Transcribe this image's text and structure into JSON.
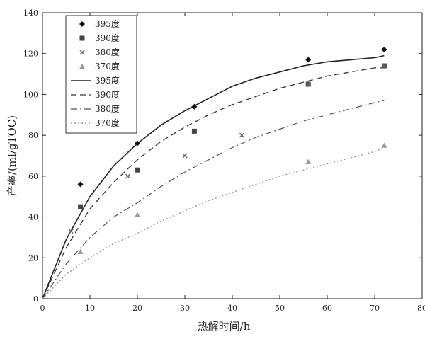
{
  "chart_data": {
    "type": "scatter",
    "title": "",
    "xlabel": "热解时间/h",
    "ylabel": "产率/(ml/gTOC)",
    "xlim": [
      0,
      80
    ],
    "ylim": [
      0,
      140
    ],
    "xticks": [
      0,
      10,
      20,
      30,
      40,
      50,
      60,
      70,
      80
    ],
    "yticks": [
      0,
      20,
      40,
      60,
      80,
      100,
      120,
      140
    ],
    "grid": false,
    "legend_position": "top-left",
    "series": [
      {
        "name": "395度",
        "kind": "points",
        "marker": "diamond",
        "color": "#111111",
        "x": [
          8,
          20,
          32,
          56,
          72
        ],
        "y": [
          56,
          76,
          94,
          117,
          122
        ]
      },
      {
        "name": "390度",
        "kind": "points",
        "marker": "square",
        "color": "#444444",
        "x": [
          8,
          20,
          32,
          56,
          72
        ],
        "y": [
          45,
          63,
          82,
          105,
          114
        ]
      },
      {
        "name": "380度",
        "kind": "points",
        "marker": "cross",
        "color": "#666666",
        "x": [
          6,
          18,
          30,
          42,
          56,
          72
        ],
        "y": [
          33,
          60,
          70,
          80,
          105,
          114
        ]
      },
      {
        "name": "370度",
        "kind": "points",
        "marker": "triangle",
        "color": "#999999",
        "x": [
          8,
          20,
          56,
          72
        ],
        "y": [
          23,
          41,
          67,
          75
        ]
      },
      {
        "name": "395度",
        "kind": "line",
        "dash": "solid",
        "color": "#222222",
        "x": [
          0,
          5,
          10,
          15,
          20,
          25,
          30,
          35,
          40,
          45,
          50,
          55,
          60,
          65,
          70,
          72
        ],
        "y": [
          0,
          29,
          50,
          65,
          76,
          85,
          92,
          98,
          104,
          108,
          111,
          114,
          116,
          117,
          118,
          119
        ]
      },
      {
        "name": "390度",
        "kind": "line",
        "dash": "dashed",
        "color": "#333333",
        "x": [
          0,
          5,
          10,
          15,
          20,
          25,
          30,
          35,
          40,
          45,
          50,
          55,
          60,
          65,
          70,
          72
        ],
        "y": [
          0,
          25,
          44,
          57,
          68,
          77,
          84,
          90,
          95,
          99,
          103,
          106,
          109,
          111,
          113,
          113
        ]
      },
      {
        "name": "380度",
        "kind": "line",
        "dash": "dashdot",
        "color": "#555555",
        "x": [
          0,
          5,
          10,
          15,
          20,
          25,
          30,
          35,
          40,
          45,
          50,
          55,
          60,
          65,
          70,
          72
        ],
        "y": [
          0,
          17,
          30,
          40,
          47,
          55,
          62,
          68,
          74,
          79,
          83,
          87,
          90,
          93,
          96,
          97
        ]
      },
      {
        "name": "370度",
        "kind": "line",
        "dash": "dotted",
        "color": "#999999",
        "x": [
          0,
          5,
          10,
          15,
          20,
          25,
          30,
          35,
          40,
          45,
          50,
          55,
          60,
          65,
          70,
          72
        ],
        "y": [
          0,
          12,
          20,
          27,
          32,
          38,
          43,
          48,
          52,
          56,
          60,
          63,
          66,
          69,
          72,
          74
        ]
      }
    ]
  }
}
